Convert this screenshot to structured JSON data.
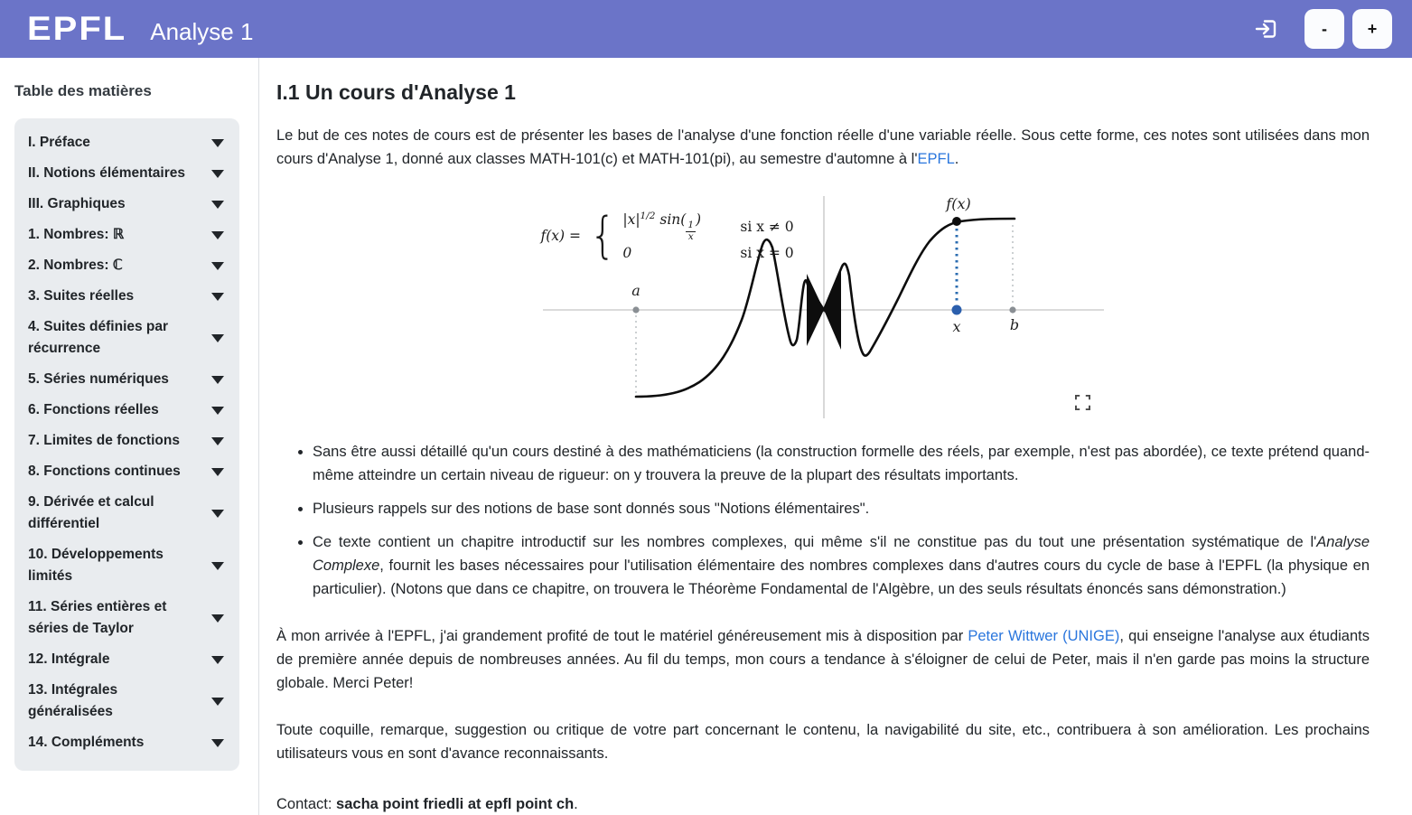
{
  "header": {
    "logo": "EPFL",
    "title": "Analyse 1",
    "minus_label": "-",
    "plus_label": "+"
  },
  "colors": {
    "header_background": "#6b74c8",
    "link_blue": "#2a76dd",
    "toc_card_background": "#e9ecef",
    "figure_marker_blue": "#2b5fad",
    "figure_marker_gray": "#8a8f94",
    "axis_gray": "#cfcfcf"
  },
  "sidebar": {
    "title": "Table des matières",
    "items": [
      {
        "label": "I. Préface"
      },
      {
        "label": "II. Notions élémentaires"
      },
      {
        "label": "III. Graphiques"
      },
      {
        "label": "1. Nombres: ℝ"
      },
      {
        "label": "2. Nombres: ℂ"
      },
      {
        "label": "3. Suites réelles"
      },
      {
        "label": "4. Suites définies par récurrence"
      },
      {
        "label": "5. Séries numériques"
      },
      {
        "label": "6. Fonctions réelles"
      },
      {
        "label": "7. Limites de fonctions"
      },
      {
        "label": "8. Fonctions continues"
      },
      {
        "label": "9. Dérivée et calcul différentiel"
      },
      {
        "label": "10. Développements limités"
      },
      {
        "label": "11. Séries entières et séries de Taylor"
      },
      {
        "label": "12. Intégrale"
      },
      {
        "label": "13. Intégrales généralisées"
      },
      {
        "label": "14. Compléments"
      }
    ]
  },
  "main": {
    "heading": "I.1 Un cours d'Analyse 1",
    "intro": {
      "before": "Le but de ces notes de cours est de présenter les bases de l'analyse d'une fonction réelle d'une variable réelle. Sous cette forme, ces notes sont utilisées dans mon cours d'Analyse 1, donné aux classes MATH-101(c) et MATH-101(pi), au semestre d'automne à l'",
      "link": "EPFL",
      "after": "."
    },
    "bullets": [
      {
        "text": "Sans être aussi détaillé qu'un cours destiné à des mathématiciens (la construction formelle des réels, par exemple, n'est pas abordée), ce texte prétend quand-même atteindre un certain niveau de rigueur: on y trouvera la preuve de la plupart des résultats importants."
      },
      {
        "text": "Plusieurs rappels sur des notions de base sont donnés sous \"Notions élémentaires\"."
      },
      {
        "before": "Ce texte contient un chapitre introductif sur les nombres complexes, qui même s'il ne constitue pas du tout une présentation systématique de l'",
        "italic": "Analyse Complexe",
        "after": ", fournit les bases nécessaires pour l'utilisation élémentaire des nombres complexes dans d'autres cours du cycle de base à l'EPFL (la physique en particulier). (Notons que dans ce chapitre, on trouvera le Théorème Fondamental de l'Algèbre, un des seuls résultats énoncés sans démonstration.)"
      }
    ],
    "ack": {
      "before": "À mon arrivée à l'EPFL, j'ai grandement profité de tout le matériel généreusement mis à disposition par ",
      "link": "Peter Wittwer (UNIGE)",
      "after": ", qui enseigne l'analyse aux étudiants de première année depuis de nombreuses années. Au fil du temps, mon cours a tendance à s'éloigner de celui de Peter, mais il n'en garde pas moins la structure globale. Merci Peter!"
    },
    "feedback": {
      "text": "Toute coquille, remarque, suggestion ou critique de votre part concernant le contenu, la navigabilité du site, etc., contribuera à son amélioration. Les prochains utilisateurs vous en sont d'avance reconnaissants."
    },
    "contact": {
      "label": "Contact: ",
      "email": "sacha point friedli at epfl point ch",
      "after": "."
    }
  },
  "figure": {
    "description": "Graphe de f(x) = |x|^(1/2) sin(1/x), oscillant autour de 0, avec points a, x, b sur l'axe et valeur f(x) marquée",
    "formula": {
      "lhs": "f(x) =",
      "abs": "|x|",
      "exp": "1/2",
      "sin": " sin(",
      "num": "1",
      "den": "x",
      "close": ")",
      "cond1": "si x ≠ 0",
      "zero": "0",
      "cond2": "si x = 0"
    },
    "labels": {
      "a": "a",
      "x": "x",
      "b": "b",
      "fx": "f(x)"
    }
  }
}
